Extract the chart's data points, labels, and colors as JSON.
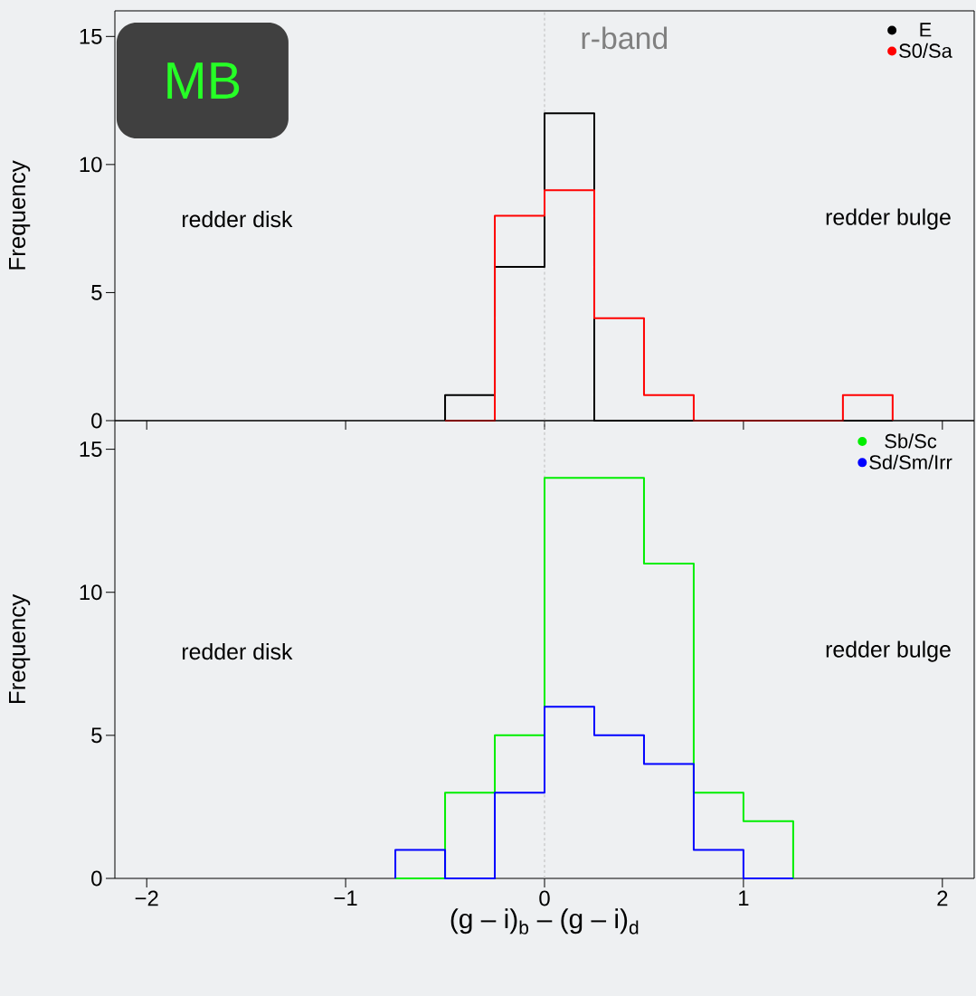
{
  "chart_data": [
    {
      "type": "histogram",
      "ylabel": "Frequency",
      "xlim": [
        -2.16,
        2.16
      ],
      "ylim": [
        0,
        16
      ],
      "xticks": [
        {
          "value": -2,
          "label": null
        },
        {
          "value": -1,
          "label": null
        },
        {
          "value": 0,
          "label": null
        },
        {
          "value": 1,
          "label": null
        },
        {
          "value": 2,
          "label": null
        }
      ],
      "yticks": [
        {
          "value": 0,
          "label": "0"
        },
        {
          "value": 5,
          "label": "5"
        },
        {
          "value": 10,
          "label": "10"
        },
        {
          "value": 15,
          "label": "15"
        }
      ],
      "tick_labels": "y",
      "legend": "top right",
      "annotations": [
        "MB",
        "r-band",
        "redder disk",
        "redder bulge"
      ],
      "ref_lines": [
        {
          "axis": "x",
          "value": 0,
          "color": "#bbbbbb",
          "line_style": "dashed"
        }
      ],
      "bins": [
        -0.5,
        -0.25,
        0,
        0.25,
        0.5,
        0.75,
        1,
        1.25,
        1.5,
        1.75
      ],
      "series": [
        {
          "name": "E",
          "color": "#000000",
          "values": [
            1,
            6,
            12,
            0,
            0,
            0,
            0,
            0,
            0
          ]
        },
        {
          "name": "S0/Sa",
          "color": "#ff0000",
          "values": [
            0,
            8,
            9,
            4,
            1,
            0,
            0,
            0,
            1
          ]
        }
      ]
    },
    {
      "type": "histogram",
      "ylabel": "Frequency",
      "xlabel": "(g – i)$_{b}$ – (g – i)$_{d}$",
      "xlim": [
        -2.16,
        2.16
      ],
      "ylim": [
        0,
        16
      ],
      "xticks": [
        {
          "value": -2,
          "label": "−2"
        },
        {
          "value": -1,
          "label": "−1"
        },
        {
          "value": 0,
          "label": "0"
        },
        {
          "value": 1,
          "label": "1"
        },
        {
          "value": 2,
          "label": "2"
        }
      ],
      "yticks": [
        {
          "value": 0,
          "label": "0"
        },
        {
          "value": 5,
          "label": "5"
        },
        {
          "value": 10,
          "label": "10"
        },
        {
          "value": 15,
          "label": "15"
        }
      ],
      "legend": "top right",
      "annotations": [
        "redder disk",
        "redder bulge"
      ],
      "ref_lines": [
        {
          "axis": "x",
          "value": 0,
          "color": "#bbbbbb",
          "line_style": "dashed"
        }
      ],
      "bins": [
        -0.75,
        -0.5,
        -0.25,
        0,
        0.25,
        0.5,
        0.75,
        1,
        1.25
      ],
      "series": [
        {
          "name": "Sb/Sc",
          "color": "#00ee00",
          "values": [
            0,
            3,
            5,
            14,
            14,
            11,
            3,
            2
          ]
        },
        {
          "name": "Sd/Sm/Irr",
          "color": "#0000ff",
          "values": [
            1,
            0,
            3,
            6,
            5,
            4,
            1,
            0
          ]
        }
      ]
    }
  ]
}
